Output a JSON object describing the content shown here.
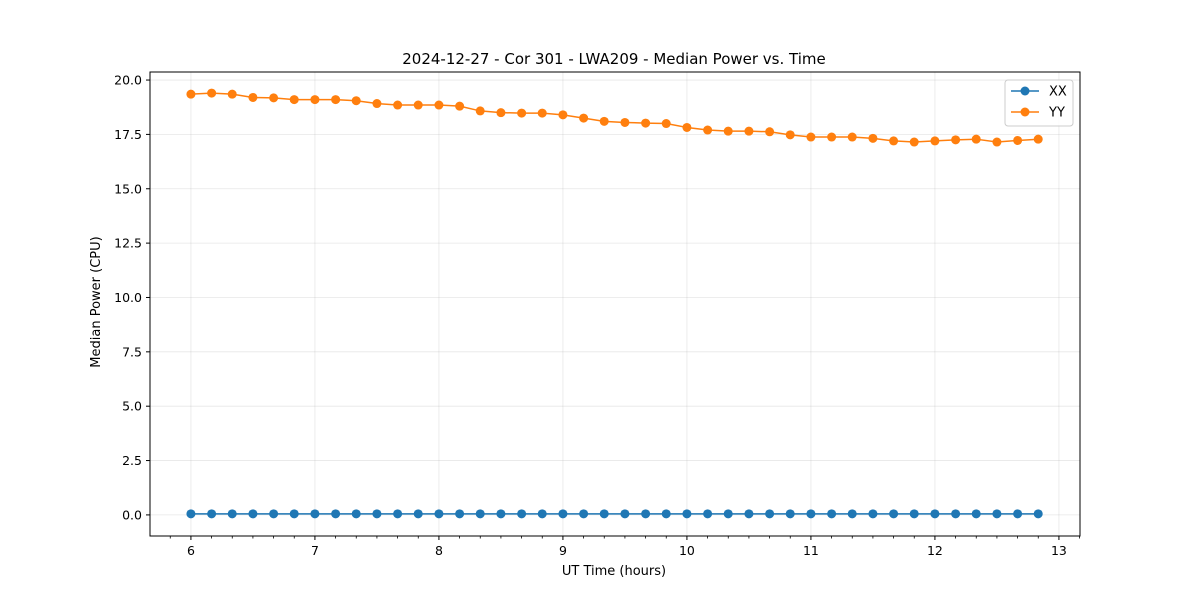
{
  "chart_data": {
    "type": "line",
    "title": "2024-12-27 - Cor 301 - LWA209 - Median Power vs. Time",
    "xlabel": "UT Time (hours)",
    "ylabel": "Median Power (CPU)",
    "xlim": [
      5.67,
      13.17
    ],
    "ylim": [
      -0.97,
      20.37
    ],
    "xticks": [
      6,
      7,
      8,
      9,
      10,
      11,
      12,
      13
    ],
    "xtick_labels": [
      "6",
      "7",
      "8",
      "9",
      "10",
      "11",
      "12",
      "13"
    ],
    "yticks": [
      0,
      2.5,
      5,
      7.5,
      10,
      12.5,
      15,
      17.5,
      20
    ],
    "ytick_labels": [
      "0.0",
      "2.5",
      "5.0",
      "7.5",
      "10.0",
      "12.5",
      "15.0",
      "17.5",
      "20.0"
    ],
    "grid": true,
    "legend_position": "top-right",
    "x": [
      6.0,
      6.167,
      6.333,
      6.5,
      6.667,
      6.833,
      7.0,
      7.167,
      7.333,
      7.5,
      7.667,
      7.833,
      8.0,
      8.167,
      8.333,
      8.5,
      8.667,
      8.833,
      9.0,
      9.167,
      9.333,
      9.5,
      9.667,
      9.833,
      10.0,
      10.167,
      10.333,
      10.5,
      10.667,
      10.833,
      11.0,
      11.167,
      11.333,
      11.5,
      11.667,
      11.833,
      12.0,
      12.167,
      12.333,
      12.5,
      12.667,
      12.833
    ],
    "series": [
      {
        "name": "XX",
        "color": "#1f77b4",
        "values": [
          0.05,
          0.05,
          0.05,
          0.05,
          0.05,
          0.05,
          0.05,
          0.05,
          0.05,
          0.05,
          0.05,
          0.05,
          0.05,
          0.05,
          0.05,
          0.05,
          0.05,
          0.05,
          0.05,
          0.05,
          0.05,
          0.05,
          0.05,
          0.05,
          0.05,
          0.05,
          0.05,
          0.05,
          0.05,
          0.05,
          0.05,
          0.05,
          0.05,
          0.05,
          0.05,
          0.05,
          0.05,
          0.05,
          0.05,
          0.05,
          0.05,
          0.05
        ]
      },
      {
        "name": "YY",
        "color": "#ff7f0e",
        "values": [
          19.35,
          19.4,
          19.35,
          19.2,
          19.18,
          19.1,
          19.1,
          19.1,
          19.05,
          18.92,
          18.85,
          18.85,
          18.85,
          18.8,
          18.58,
          18.5,
          18.48,
          18.48,
          18.4,
          18.25,
          18.1,
          18.05,
          18.02,
          18.0,
          17.82,
          17.7,
          17.65,
          17.65,
          17.62,
          17.48,
          17.38,
          17.38,
          17.38,
          17.32,
          17.2,
          17.15,
          17.2,
          17.25,
          17.28,
          17.15,
          17.22,
          17.28
        ]
      }
    ]
  }
}
